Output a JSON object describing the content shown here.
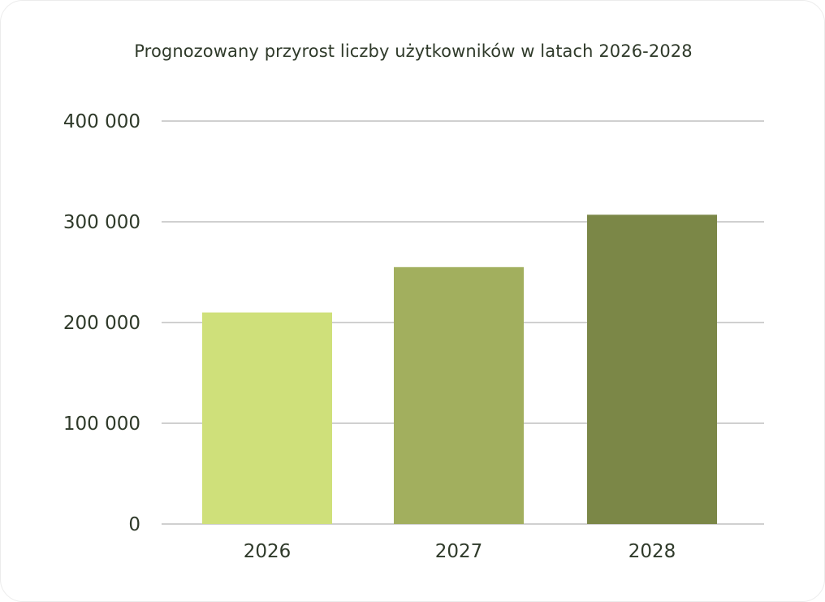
{
  "chart_data": {
    "type": "bar",
    "title": "Prognozowany przyrost liczby użytkowników w latach 2026-2028",
    "xlabel": "",
    "ylabel": "",
    "categories": [
      "2026",
      "2027",
      "2028"
    ],
    "values": [
      210000,
      255000,
      307000
    ],
    "ylim": [
      0,
      400000
    ],
    "yticks": [
      0,
      100000,
      200000,
      300000,
      400000
    ],
    "ytick_labels": [
      "0",
      "100 000",
      "200 000",
      "300 000",
      "400 000"
    ],
    "grid": true,
    "legend": "none",
    "bar_colors": [
      "#cfe07a",
      "#a2af5e",
      "#7b8747"
    ]
  },
  "colors": {
    "gridline": "#b5b5b5",
    "text": "#2f3a2a"
  }
}
